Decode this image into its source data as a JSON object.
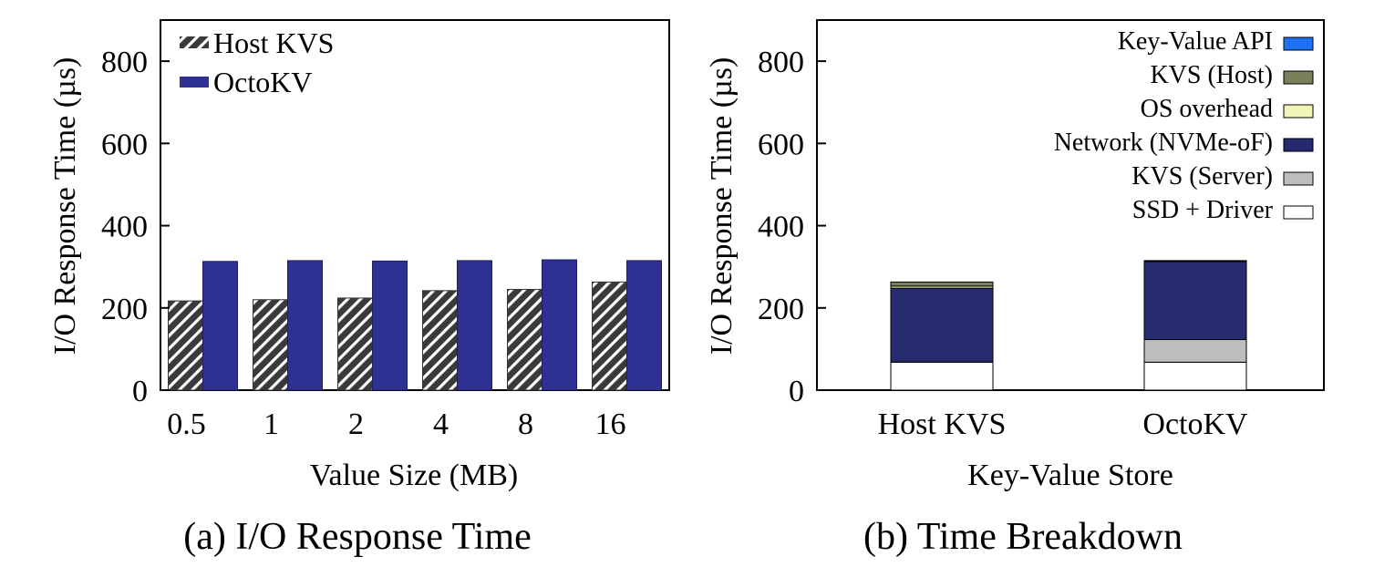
{
  "colors": {
    "host_kvs_hatch_bg": "#3a3a3a",
    "octokv": "#2e3192",
    "key_value_api": "#1f6ff5",
    "kvs_host": "#7a805a",
    "os_overhead": "#f2f5b8",
    "network_nvmeof": "#262a6e",
    "kvs_server": "#bdbdbd",
    "ssd_driver": "#ffffff"
  },
  "chart_data": [
    {
      "type": "bar",
      "caption": "(a) I/O Response Time",
      "xlabel": "Value Size (MB)",
      "ylabel": "I/O Response Time (µs)",
      "ylim": [
        0,
        900
      ],
      "yticks": [
        "0",
        "200",
        "400",
        "600",
        "800"
      ],
      "categories": [
        "0.5",
        "1",
        "2",
        "4",
        "8",
        "16"
      ],
      "series": [
        {
          "name": "Host KVS",
          "values": [
            217,
            220,
            224,
            242,
            245,
            263
          ]
        },
        {
          "name": "OctoKV",
          "values": [
            313,
            315,
            314,
            315,
            317,
            315
          ]
        }
      ],
      "legend_position": "top-left",
      "grid": false
    },
    {
      "type": "bar",
      "stacked": true,
      "caption": "(b) Time Breakdown",
      "xlabel": "Key-Value Store",
      "ylabel": "I/O Response Time (µs)",
      "ylim": [
        0,
        900
      ],
      "yticks": [
        "0",
        "200",
        "400",
        "600",
        "800"
      ],
      "categories": [
        "Host KVS",
        "OctoKV"
      ],
      "series": [
        {
          "name": "SSD + Driver",
          "values": [
            68,
            68
          ]
        },
        {
          "name": "KVS (Server)",
          "values": [
            0,
            55
          ]
        },
        {
          "name": "Network (NVMe-oF)",
          "values": [
            180,
            190
          ]
        },
        {
          "name": "OS overhead",
          "values": [
            5,
            0
          ]
        },
        {
          "name": "KVS (Host)",
          "values": [
            10,
            0
          ]
        },
        {
          "name": "Key-Value API",
          "values": [
            0,
            2
          ]
        }
      ],
      "legend_order": [
        "Key-Value API",
        "KVS (Host)",
        "OS overhead",
        "Network (NVMe-oF)",
        "KVS (Server)",
        "SSD + Driver"
      ],
      "legend_position": "top-right",
      "grid": false
    }
  ]
}
